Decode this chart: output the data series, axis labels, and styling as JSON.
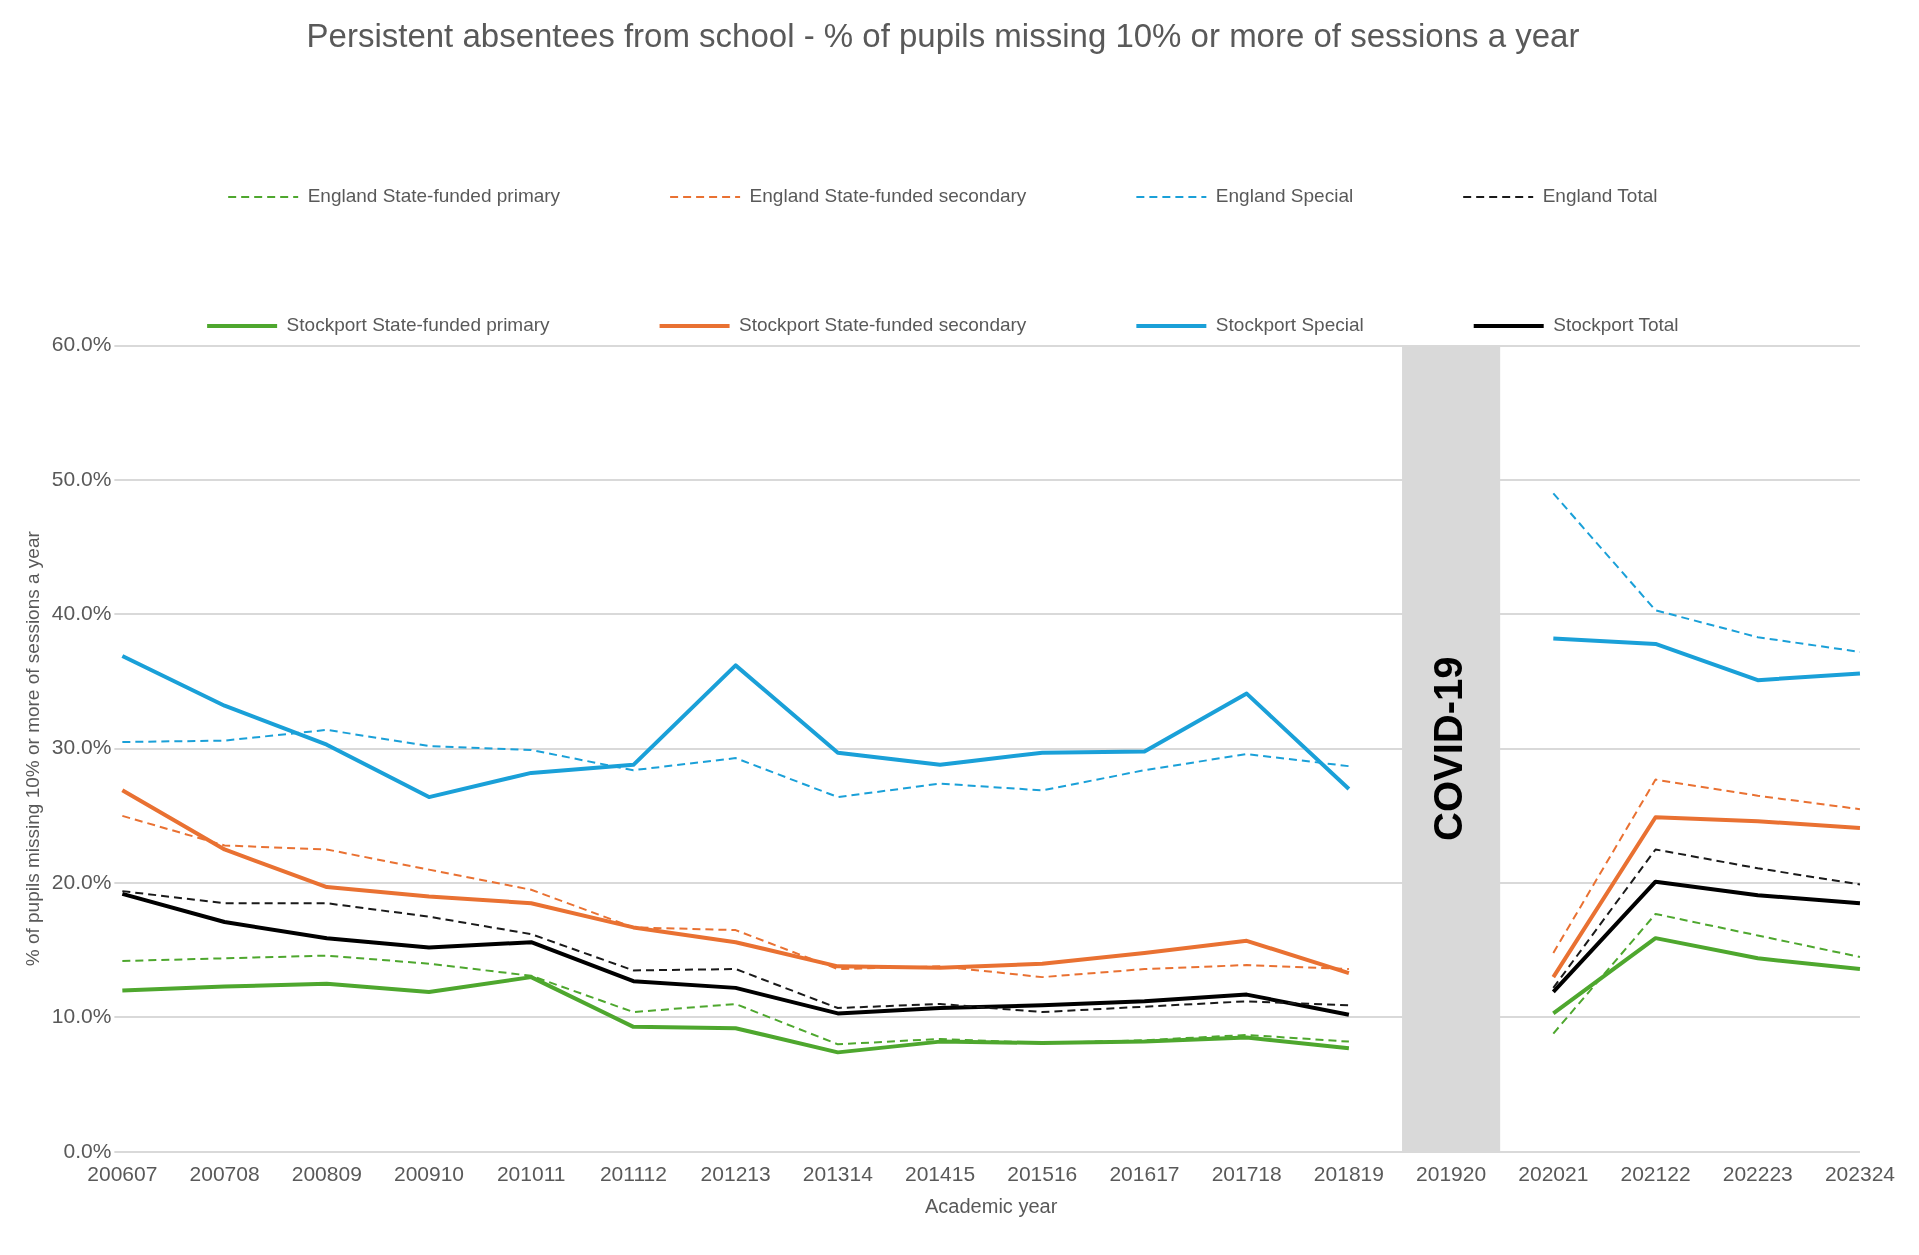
{
  "chart_data": {
    "type": "line",
    "title": "Persistent absentees from school - % of pupils missing 10% or more of sessions a year",
    "xlabel": "Academic year",
    "ylabel": "% of pupils missing 10% or more of sessions a year",
    "categories": [
      "200607",
      "200708",
      "200809",
      "200910",
      "201011",
      "201112",
      "201213",
      "201314",
      "201415",
      "201516",
      "201617",
      "201718",
      "201819",
      "201920",
      "202021",
      "202122",
      "202223",
      "202324"
    ],
    "ylim": [
      0,
      60
    ],
    "yticks": [
      {
        "value": 0,
        "label": "0.0%"
      },
      {
        "value": 10,
        "label": "10.0%"
      },
      {
        "value": 20,
        "label": "20.0%"
      },
      {
        "value": 30,
        "label": "30.0%"
      },
      {
        "value": 40,
        "label": "40.0%"
      },
      {
        "value": 50,
        "label": "50.0%"
      },
      {
        "value": 60,
        "label": "60.0%"
      }
    ],
    "grid": "y",
    "legend": "top",
    "bands": [
      {
        "axis": "x",
        "from": "201920",
        "to": "201920",
        "label": "COVID-19",
        "color": "#d9d9d9"
      }
    ],
    "series": [
      {
        "name": "England State-funded primary",
        "color": "#4ea72e",
        "line_style": "dashed",
        "values": [
          14.2,
          14.4,
          14.6,
          14.0,
          13.1,
          10.4,
          11.0,
          8.0,
          8.4,
          8.1,
          8.3,
          8.7,
          8.2,
          null,
          8.8,
          17.7,
          16.1,
          14.5
        ]
      },
      {
        "name": "England State-funded secondary",
        "color": "#e97132",
        "line_style": "dashed",
        "values": [
          25.0,
          22.8,
          22.5,
          21.0,
          19.5,
          16.7,
          16.5,
          13.6,
          13.8,
          13.0,
          13.6,
          13.9,
          13.6,
          null,
          14.8,
          27.7,
          26.5,
          25.5
        ]
      },
      {
        "name": "England Special",
        "color": "#1aa0d8",
        "line_style": "dashed",
        "values": [
          30.5,
          30.6,
          31.4,
          30.2,
          29.9,
          28.4,
          29.3,
          26.4,
          27.4,
          26.9,
          28.4,
          29.6,
          28.7,
          null,
          49.0,
          40.3,
          38.3,
          37.2
        ]
      },
      {
        "name": "England Total",
        "color": "#1a1a1a",
        "line_style": "dashed",
        "values": [
          19.4,
          18.5,
          18.5,
          17.5,
          16.2,
          13.5,
          13.6,
          10.7,
          11.0,
          10.4,
          10.8,
          11.2,
          10.9,
          null,
          12.2,
          22.5,
          21.1,
          19.9
        ]
      },
      {
        "name": "Stockport State-funded primary",
        "color": "#4ea72e",
        "line_style": "solid",
        "values": [
          12.0,
          12.3,
          12.5,
          11.9,
          13.0,
          9.3,
          9.2,
          7.4,
          8.2,
          8.1,
          8.2,
          8.5,
          7.7,
          null,
          10.3,
          15.9,
          14.4,
          13.6
        ]
      },
      {
        "name": "Stockport State-funded secondary",
        "color": "#e97132",
        "line_style": "solid",
        "values": [
          26.9,
          22.5,
          19.7,
          19.0,
          18.5,
          16.7,
          15.6,
          13.8,
          13.7,
          14.0,
          14.8,
          15.7,
          13.3,
          null,
          13.0,
          24.9,
          24.6,
          24.1
        ]
      },
      {
        "name": "Stockport Special",
        "color": "#1aa0d8",
        "line_style": "solid",
        "values": [
          36.9,
          33.2,
          30.3,
          26.4,
          28.2,
          28.8,
          36.2,
          29.7,
          28.8,
          29.7,
          29.8,
          34.1,
          27.0,
          null,
          38.2,
          37.8,
          35.1,
          35.6
        ]
      },
      {
        "name": "Stockport Total",
        "color": "#000000",
        "line_style": "solid",
        "values": [
          19.2,
          17.1,
          15.9,
          15.2,
          15.6,
          12.7,
          12.2,
          10.3,
          10.7,
          10.9,
          11.2,
          11.7,
          10.2,
          null,
          11.9,
          20.1,
          19.1,
          18.5
        ]
      }
    ]
  }
}
